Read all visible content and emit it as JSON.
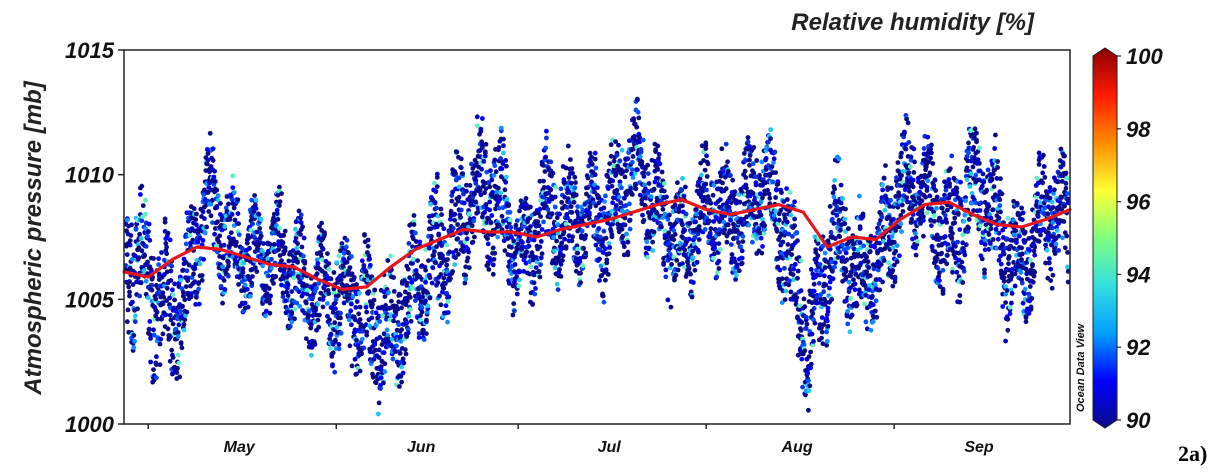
{
  "figure_label": "2a)",
  "chart_data": {
    "type": "scatter",
    "ylabel": "Atmospheric pressure [mb]",
    "ylim": [
      1000,
      1015
    ],
    "y_ticks": [
      "1000",
      "1005",
      "1010",
      "1015"
    ],
    "xlim": [
      "2016-04-27",
      "2016-09-30"
    ],
    "x_ticks": [
      {
        "label": "May",
        "date": "2016-05-16"
      },
      {
        "label": "Jun",
        "date": "2016-06-15"
      },
      {
        "label": "Jul",
        "date": "2016-07-16"
      },
      {
        "label": "Aug",
        "date": "2016-08-16"
      },
      {
        "label": "Sep",
        "date": "2016-09-15"
      }
    ],
    "color_variable": "Relative humidity [%]",
    "colorbar": {
      "range": [
        90,
        100
      ],
      "ticks": [
        "90",
        "92",
        "94",
        "96",
        "98",
        "100"
      ],
      "side_label": "Ocean Data View",
      "colors": [
        "#0a0a8a",
        "#0000ff",
        "#00a0ff",
        "#33e0e0",
        "#7fff7f",
        "#ffff33",
        "#ff8c00",
        "#ff1a00",
        "#8b0000"
      ]
    },
    "series": [
      {
        "style": "points",
        "x": [
          "2016-04-28",
          "2016-05-02",
          "2016-05-06",
          "2016-05-10",
          "2016-05-14",
          "2016-05-18",
          "2016-05-22",
          "2016-05-26",
          "2016-05-30",
          "2016-06-03",
          "2016-06-07",
          "2016-06-11",
          "2016-06-15",
          "2016-06-19",
          "2016-06-23",
          "2016-06-27",
          "2016-07-01",
          "2016-07-05",
          "2016-07-09",
          "2016-07-13",
          "2016-07-17",
          "2016-07-21",
          "2016-07-25",
          "2016-07-29",
          "2016-08-02",
          "2016-08-06",
          "2016-08-10",
          "2016-08-14",
          "2016-08-18",
          "2016-08-22",
          "2016-08-26",
          "2016-08-30",
          "2016-09-03",
          "2016-09-07",
          "2016-09-11",
          "2016-09-15",
          "2016-09-19",
          "2016-09-23",
          "2016-09-27"
        ],
        "y": [
          1006.5,
          1004.5,
          1005.0,
          1008.5,
          1007.0,
          1007.3,
          1006.5,
          1005.5,
          1006.0,
          1004.5,
          1004.0,
          1004.5,
          1005.5,
          1007.0,
          1009.5,
          1008.5,
          1007.0,
          1008.5,
          1007.5,
          1009.0,
          1008.5,
          1010.0,
          1008.5,
          1007.0,
          1008.5,
          1009.0,
          1009.0,
          1007.5,
          1004.0,
          1007.0,
          1006.0,
          1007.5,
          1009.0,
          1009.0,
          1008.0,
          1009.0,
          1007.5,
          1007.0,
          1008.0
        ],
        "spread": [
          2.5,
          2.8,
          2.3,
          2.0,
          2.0,
          1.8,
          1.8,
          2.0,
          2.0,
          2.2,
          2.3,
          2.5,
          2.0,
          2.5,
          2.2,
          2.5,
          2.0,
          2.2,
          2.0,
          2.0,
          2.5,
          2.0,
          2.0,
          1.8,
          2.0,
          2.2,
          2.0,
          2.5,
          2.5,
          2.2,
          2.5,
          2.5,
          2.2,
          2.0,
          2.5,
          2.0,
          2.5,
          2.0,
          2.0
        ]
      },
      {
        "style": "line",
        "color": "#e8151b",
        "x": [
          "2016-04-27",
          "2016-05-01",
          "2016-05-05",
          "2016-05-09",
          "2016-05-13",
          "2016-05-17",
          "2016-05-21",
          "2016-05-25",
          "2016-05-29",
          "2016-06-02",
          "2016-06-06",
          "2016-06-10",
          "2016-06-14",
          "2016-06-18",
          "2016-06-22",
          "2016-06-26",
          "2016-06-30",
          "2016-07-04",
          "2016-07-08",
          "2016-07-12",
          "2016-07-16",
          "2016-07-20",
          "2016-07-24",
          "2016-07-28",
          "2016-08-01",
          "2016-08-05",
          "2016-08-09",
          "2016-08-13",
          "2016-08-17",
          "2016-08-21",
          "2016-08-25",
          "2016-08-29",
          "2016-09-02",
          "2016-09-06",
          "2016-09-10",
          "2016-09-14",
          "2016-09-18",
          "2016-09-22",
          "2016-09-26",
          "2016-09-30"
        ],
        "y": [
          1006.1,
          1005.9,
          1006.6,
          1007.1,
          1007.0,
          1006.7,
          1006.4,
          1006.3,
          1005.8,
          1005.4,
          1005.5,
          1006.3,
          1007.0,
          1007.4,
          1007.8,
          1007.7,
          1007.7,
          1007.5,
          1007.8,
          1008.0,
          1008.2,
          1008.5,
          1008.8,
          1009.0,
          1008.6,
          1008.4,
          1008.6,
          1008.8,
          1008.5,
          1007.1,
          1007.5,
          1007.4,
          1008.2,
          1008.8,
          1008.9,
          1008.4,
          1008.0,
          1007.9,
          1008.2,
          1008.6
        ]
      }
    ]
  }
}
